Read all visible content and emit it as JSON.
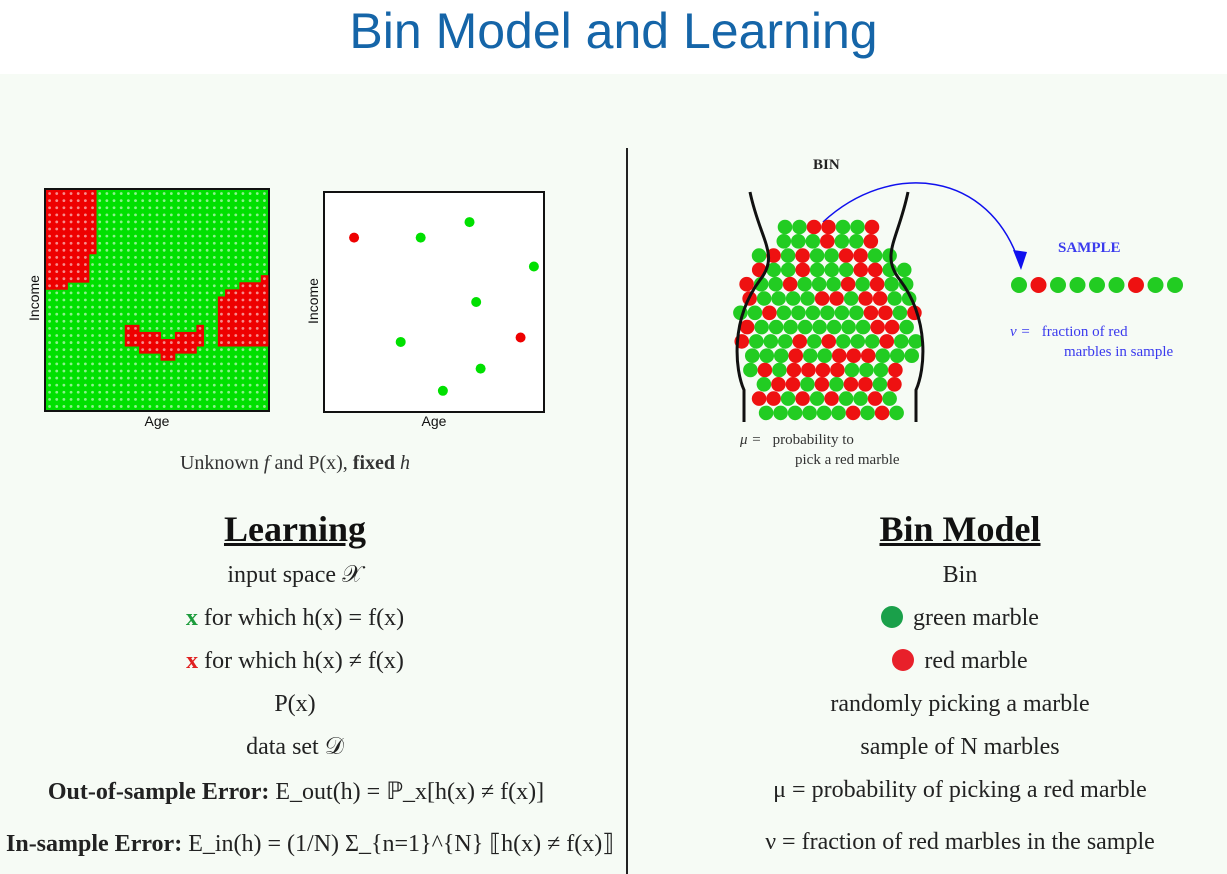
{
  "title": "Bin Model and Learning",
  "left_plots": {
    "grid_xlabel": "Age",
    "grid_ylabel": "Income",
    "scatter_xlabel": "Age",
    "scatter_ylabel": "Income",
    "caption_prefix": "Unknown",
    "caption_f": "f",
    "caption_and": "and",
    "caption_p": "P(x),",
    "caption_fixed": "fixed",
    "caption_h": "h"
  },
  "learning": {
    "heading": "Learning",
    "input_space": "input space 𝒳",
    "correct_x": "x",
    "correct_rest": "for which h(x) = f(x)",
    "wrong_x": "x",
    "wrong_rest": "for which h(x) ≠ f(x)",
    "px": "P(x)",
    "dataset": "data set 𝒟",
    "out_label": "Out-of-sample Error:",
    "out_formula": "E_out(h) = ℙ_x[h(x) ≠ f(x)]",
    "in_label": "In-sample Error:",
    "in_formula": "E_in(h) = (1/N) Σ_{n=1}^{N} ⟦h(x) ≠ f(x)⟧"
  },
  "bin": {
    "bin_label": "BIN",
    "sample_label": "SAMPLE",
    "nu_symbol": "ν =",
    "nu_text_1": "fraction of red",
    "nu_text_2": "marbles in sample",
    "mu_symbol": "μ =",
    "mu_text_1": "probability to",
    "mu_text_2": "pick a red marble"
  },
  "bin_model": {
    "heading": "Bin Model",
    "bin": "Bin",
    "green_marble": "green marble",
    "red_marble": "red marble",
    "random": "randomly picking a marble",
    "sample_n": "sample of N marbles",
    "mu_line": "μ = probability of picking a red marble",
    "nu_line": "ν = fraction of red marbles in the sample"
  },
  "colors": {
    "green": "#00e000",
    "red": "#ee0000",
    "title_blue": "#1565a8",
    "label_blue": "#3a3aee"
  },
  "scatter_points": [
    {
      "age": 0.14,
      "income": 0.79,
      "color": "red"
    },
    {
      "age": 0.44,
      "income": 0.79,
      "color": "green"
    },
    {
      "age": 0.66,
      "income": 0.86,
      "color": "green"
    },
    {
      "age": 0.95,
      "income": 0.66,
      "color": "green"
    },
    {
      "age": 0.69,
      "income": 0.5,
      "color": "green"
    },
    {
      "age": 0.89,
      "income": 0.34,
      "color": "red"
    },
    {
      "age": 0.35,
      "income": 0.32,
      "color": "green"
    },
    {
      "age": 0.71,
      "income": 0.2,
      "color": "green"
    },
    {
      "age": 0.54,
      "income": 0.1,
      "color": "green"
    }
  ],
  "sample_marbles": [
    "green",
    "red",
    "green",
    "green",
    "green",
    "green",
    "red",
    "green",
    "green"
  ]
}
